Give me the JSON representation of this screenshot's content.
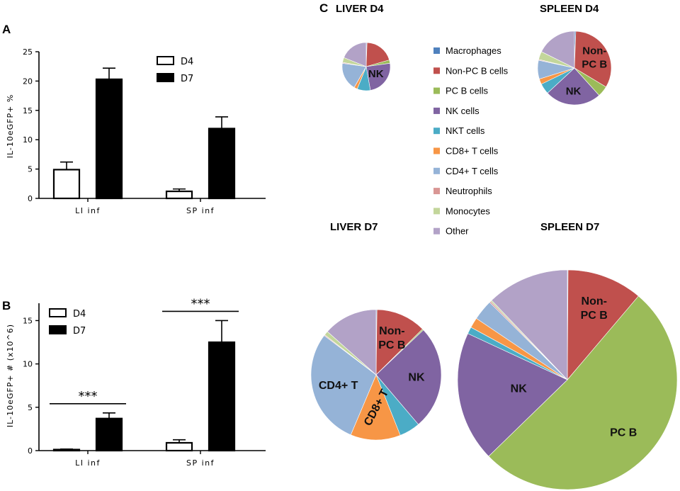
{
  "chart_data": [
    {
      "id": "A",
      "type": "bar",
      "panel_label": "A",
      "ylabel": "IL-10eGFP+ %",
      "ylim": [
        0,
        25
      ],
      "yticks": [
        0,
        5,
        10,
        15,
        20,
        25
      ],
      "categories": [
        "LI inf",
        "SP inf"
      ],
      "series": [
        {
          "name": "D4",
          "fill": "#ffffff",
          "values": [
            4.9,
            1.2
          ],
          "errors": [
            1.3,
            0.4
          ]
        },
        {
          "name": "D7",
          "fill": "#000000",
          "values": [
            20.3,
            11.9
          ],
          "errors": [
            1.9,
            2.0
          ]
        }
      ]
    },
    {
      "id": "B",
      "type": "bar",
      "panel_label": "B",
      "ylabel": "IL-10eGFP+ # (x10^6)",
      "ylim": [
        0,
        17
      ],
      "yticks": [
        0,
        5,
        10,
        15
      ],
      "categories": [
        "LI inf",
        "SP inf"
      ],
      "series": [
        {
          "name": "D4",
          "fill": "#ffffff",
          "values": [
            0.12,
            0.9
          ],
          "errors": [
            0.06,
            0.35
          ]
        },
        {
          "name": "D7",
          "fill": "#000000",
          "values": [
            3.7,
            12.5
          ],
          "errors": [
            0.65,
            2.5
          ]
        }
      ],
      "significance": [
        {
          "category": "LI inf",
          "label": "***"
        },
        {
          "category": "SP inf",
          "label": "***"
        }
      ]
    },
    {
      "id": "C",
      "type": "pie",
      "panel_label": "C",
      "legend": [
        {
          "name": "Macrophages",
          "color": "#4f81bd"
        },
        {
          "name": "Non-PC B cells",
          "color": "#c0504d"
        },
        {
          "name": "PC B cells",
          "color": "#9bbb59"
        },
        {
          "name": "NK cells",
          "color": "#8064a2"
        },
        {
          "name": "NKT cells",
          "color": "#4bacc6"
        },
        {
          "name": "CD8+ T cells",
          "color": "#f79646"
        },
        {
          "name": "CD4+ T cells",
          "color": "#95b3d7"
        },
        {
          "name": "Neutrophils",
          "color": "#d99694"
        },
        {
          "name": "Monocytes",
          "color": "#c3d69b"
        },
        {
          "name": "Other",
          "color": "#b2a2c7"
        }
      ],
      "pies": [
        {
          "title": "LIVER D4",
          "values": [
            0.5,
            18,
            2,
            22,
            8,
            2,
            17,
            0.5,
            3,
            17
          ],
          "labels": [
            {
              "text": "NK",
              "slice": 3
            }
          ]
        },
        {
          "title": "SPLEEN D4",
          "values": [
            0.5,
            28,
            4,
            21,
            4,
            2,
            7,
            0.3,
            3,
            15
          ],
          "labels": [
            {
              "text": "Non-",
              "slice": 1
            },
            {
              "text": "PC B",
              "slice": 1
            },
            {
              "text": "NK",
              "slice": 3
            }
          ]
        },
        {
          "title": "LIVER D7",
          "values": [
            0.2,
            12,
            0.3,
            25,
            5,
            12,
            28,
            0.2,
            1,
            13
          ],
          "labels": [
            {
              "text": "Non-",
              "slice": 1
            },
            {
              "text": "PC B",
              "slice": 1
            },
            {
              "text": "NK",
              "slice": 3
            },
            {
              "text": "CD8+ T",
              "slice": 5
            },
            {
              "text": "CD4+ T",
              "slice": 6
            }
          ]
        },
        {
          "title": "SPLEEN D7",
          "values": [
            0.1,
            11,
            51,
            19,
            1,
            1.5,
            3,
            0.2,
            0.2,
            12
          ],
          "labels": [
            {
              "text": "Non-",
              "slice": 1
            },
            {
              "text": "PC B",
              "slice": 1
            },
            {
              "text": "PC B",
              "slice": 2
            },
            {
              "text": "NK",
              "slice": 3
            }
          ]
        }
      ]
    }
  ]
}
